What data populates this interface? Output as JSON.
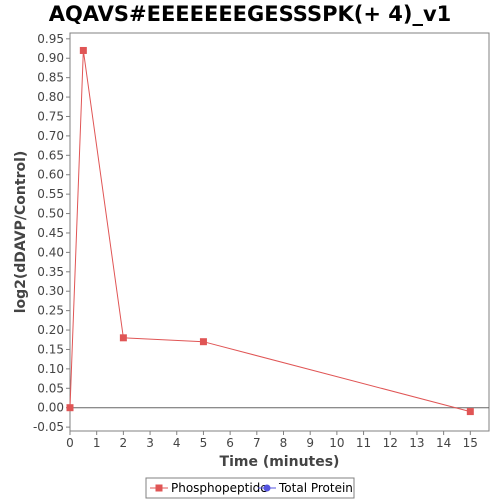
{
  "chart_data": {
    "type": "line",
    "title": "AQAVS#EEEEEEEGESSSPK(+ 4)_v1",
    "xlabel": "Time (minutes)",
    "ylabel": "log2(dDAVP/Control)",
    "xlim": [
      0,
      15.7
    ],
    "ylim": [
      -0.06,
      0.965
    ],
    "x_ticks": [
      0,
      1,
      2,
      3,
      4,
      5,
      6,
      7,
      8,
      9,
      10,
      11,
      12,
      13,
      14,
      15
    ],
    "y_ticks": [
      -0.05,
      0.0,
      0.05,
      0.1,
      0.15,
      0.2,
      0.25,
      0.3,
      0.35,
      0.4,
      0.45,
      0.5,
      0.55,
      0.6,
      0.65,
      0.7,
      0.75,
      0.8,
      0.85,
      0.9,
      0.95
    ],
    "grid": false,
    "zero_line": true,
    "legend_position": "bottom",
    "series": [
      {
        "name": "Phosphopeptide",
        "color": "#e05555",
        "marker": "square",
        "x": [
          0,
          0.5,
          2,
          5,
          15
        ],
        "y": [
          0.0,
          0.92,
          0.18,
          0.17,
          -0.01
        ]
      },
      {
        "name": "Total Protein",
        "color": "#5555e0",
        "marker": "circle",
        "x": [],
        "y": []
      }
    ]
  }
}
